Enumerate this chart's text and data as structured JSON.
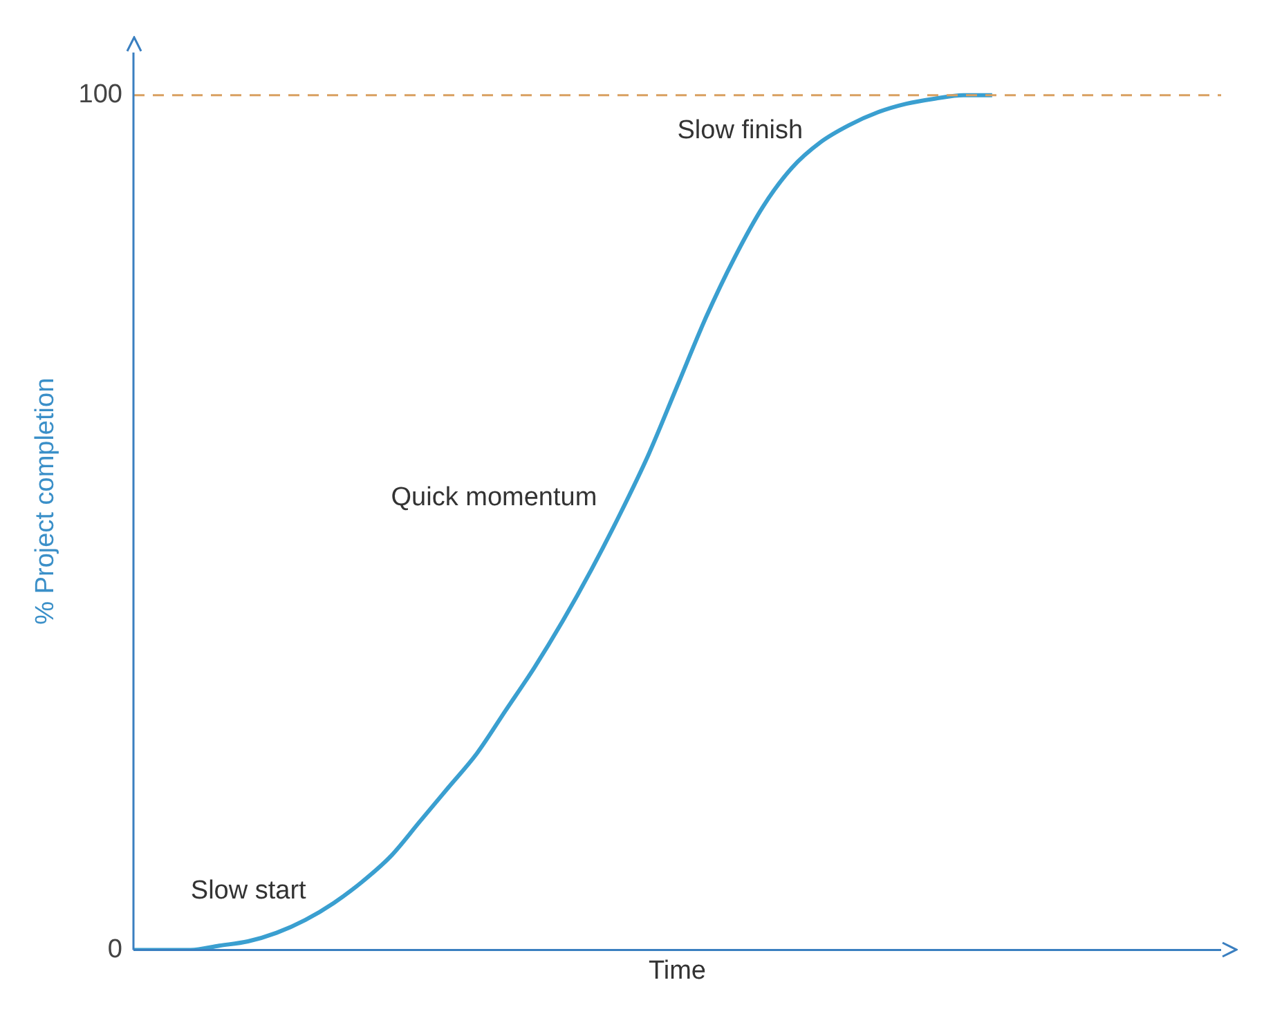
{
  "chart_data": {
    "type": "line",
    "xlabel": "Time",
    "ylabel": "% Project completion",
    "categories": [
      null,
      null,
      null,
      null,
      null,
      null,
      null,
      null,
      null,
      null,
      null,
      null,
      null,
      null,
      null,
      null,
      null,
      null,
      null,
      null,
      null,
      null,
      null,
      null,
      null,
      null,
      null,
      null,
      null,
      null,
      null,
      null,
      null,
      null,
      null,
      null,
      null,
      null,
      null
    ],
    "series": [
      {
        "color": "#3a9fd0",
        "values": [
          0,
          0,
          0,
          0.5,
          1,
          2,
          3.5,
          5.5,
          8,
          11,
          15,
          19,
          23,
          28,
          33,
          38.5,
          44.5,
          51,
          58,
          66,
          74,
          81,
          87,
          91.5,
          94.5,
          96.5,
          98,
          99,
          99.6,
          100,
          100,
          null,
          null,
          null,
          null,
          null,
          null,
          null,
          null
        ]
      }
    ],
    "ylim": [
      0,
      105
    ],
    "yticks": [
      0,
      100
    ],
    "tick_labels": "y",
    "grid": false,
    "legend": false,
    "marker": "none",
    "line_style": "solid",
    "ref_lines": [
      {
        "axis": "y",
        "value": 100,
        "color": "#d9a060",
        "line_style": "dashed"
      }
    ],
    "annotations": [
      "Slow start",
      "Quick momentum",
      "Slow finish"
    ]
  }
}
